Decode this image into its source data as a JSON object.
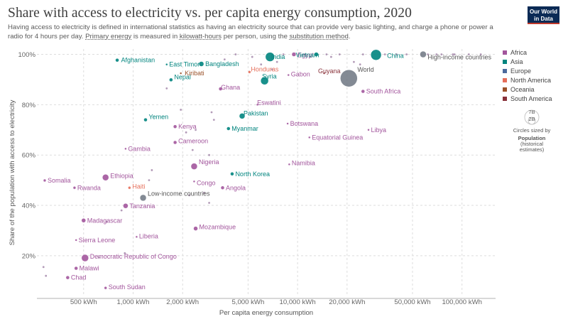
{
  "header": {
    "title": "Share with access to electricity vs. per capita energy consumption, 2020",
    "subtitle_part1": "Having access to electricity is defined in international statistics as having an electricity source that can provide very basic lighting, and charge a phone or power a radio for 4 hours per day. ",
    "subtitle_link1": "Primary energy",
    "subtitle_part2": " is measured in ",
    "subtitle_link2": "kilowatt-hours",
    "subtitle_part3": " per person, using the ",
    "subtitle_link3": "substitution method",
    "subtitle_part4": ".",
    "logo_line1": "Our World",
    "logo_line2": "in Data"
  },
  "colors": {
    "Africa": "#a2559c",
    "Asia": "#00847e",
    "Europe": "#4c6a9c",
    "North America": "#e56e5a",
    "Oceania": "#9a5129",
    "South America": "#883039",
    "Aggregate": "#6d7581"
  },
  "chart_data": {
    "type": "scatter",
    "xlabel": "Per capita energy consumption",
    "ylabel": "Share of the population with access to electricity",
    "xscale": "log",
    "xlim": [
      260,
      160000
    ],
    "ylim": [
      5,
      101
    ],
    "x_ticks": [
      {
        "value": 500,
        "label": "500 kWh"
      },
      {
        "value": 1000,
        "label": "1,000 kWh"
      },
      {
        "value": 2000,
        "label": "2,000 kWh"
      },
      {
        "value": 5000,
        "label": "5,000 kWh"
      },
      {
        "value": 10000,
        "label": "10,000 kWh"
      },
      {
        "value": 20000,
        "label": "20,000 kWh"
      },
      {
        "value": 50000,
        "label": "50,000 kWh"
      },
      {
        "value": 100000,
        "label": "100,000 kWh"
      }
    ],
    "y_ticks": [
      {
        "value": 20,
        "label": "20%"
      },
      {
        "value": 40,
        "label": "40%"
      },
      {
        "value": 60,
        "label": "60%"
      },
      {
        "value": 80,
        "label": "80%"
      },
      {
        "value": 100,
        "label": "100%"
      }
    ],
    "legend": {
      "position": "right",
      "entries": [
        "Africa",
        "Asia",
        "Europe",
        "North America",
        "Oceania",
        "South America"
      ],
      "size_label_big": "7B",
      "size_label_small": "2B",
      "size_caption": "Circles sized by",
      "size_variable_line1": "Population",
      "size_variable_line2": "(historical",
      "size_variable_line3": "estimates)"
    },
    "points": [
      {
        "label": "Afghanistan",
        "x": 800,
        "y": 97.7,
        "r": 2.5,
        "group": "Asia"
      },
      {
        "label": "East Timor",
        "x": 1600,
        "y": 96,
        "r": 1.5,
        "group": "Asia"
      },
      {
        "label": "Bangladesh",
        "x": 2600,
        "y": 96.2,
        "r": 3.5,
        "group": "Asia"
      },
      {
        "label": "India",
        "x": 6800,
        "y": 99,
        "r": 6.5,
        "group": "Asia"
      },
      {
        "label": "Egypt",
        "x": 9500,
        "y": 100,
        "r": 3,
        "group": "Africa"
      },
      {
        "label": "Vietnam",
        "x": 13000,
        "y": 100,
        "r": 3,
        "group": "Asia"
      },
      {
        "label": "China",
        "x": 30000,
        "y": 99.8,
        "r": 7.5,
        "group": "Asia"
      },
      {
        "label": "High-income countries",
        "x": 58000,
        "y": 100,
        "r": 4.5,
        "group": "Aggregate"
      },
      {
        "label": "World",
        "x": 20500,
        "y": 90.5,
        "r": 12,
        "group": "Aggregate"
      },
      {
        "label": "Kiribati",
        "x": 1950,
        "y": 92.5,
        "r": 1.5,
        "group": "Oceania"
      },
      {
        "label": "Nepal",
        "x": 1700,
        "y": 89.9,
        "r": 2.5,
        "group": "Asia"
      },
      {
        "label": "Honduras",
        "x": 5100,
        "y": 93,
        "r": 2,
        "group": "North America"
      },
      {
        "label": "Syria",
        "x": 6300,
        "y": 89.5,
        "r": 5.5,
        "group": "Asia"
      },
      {
        "label": "Gabon",
        "x": 8800,
        "y": 91.8,
        "r": 1.5,
        "group": "Africa"
      },
      {
        "label": "Guyana",
        "x": 14500,
        "y": 92.5,
        "r": 1.5,
        "group": "South America"
      },
      {
        "label": "Ghana",
        "x": 3400,
        "y": 86.3,
        "r": 2.5,
        "group": "Africa"
      },
      {
        "label": "South Africa",
        "x": 25000,
        "y": 85.3,
        "r": 2.5,
        "group": "Africa"
      },
      {
        "label": "Eswatini",
        "x": 5700,
        "y": 80,
        "r": 1.5,
        "group": "Africa"
      },
      {
        "label": "Pakistan",
        "x": 4600,
        "y": 75.5,
        "r": 4,
        "group": "Asia"
      },
      {
        "label": "Yemen",
        "x": 1190,
        "y": 74,
        "r": 2.5,
        "group": "Asia"
      },
      {
        "label": "Kenya",
        "x": 1800,
        "y": 71.3,
        "r": 2.5,
        "group": "Africa"
      },
      {
        "label": "Myanmar",
        "x": 3800,
        "y": 70.5,
        "r": 2.5,
        "group": "Asia"
      },
      {
        "label": "Botswana",
        "x": 8700,
        "y": 72.5,
        "r": 1.5,
        "group": "Africa"
      },
      {
        "label": "Libya",
        "x": 27000,
        "y": 70,
        "r": 1.5,
        "group": "Africa"
      },
      {
        "label": "Equatorial Guinea",
        "x": 11800,
        "y": 67,
        "r": 1.5,
        "group": "Africa"
      },
      {
        "label": "Cameroon",
        "x": 1800,
        "y": 65,
        "r": 2.5,
        "group": "Africa"
      },
      {
        "label": "Gambia",
        "x": 900,
        "y": 62.5,
        "r": 1.5,
        "group": "Africa"
      },
      {
        "label": "Nigeria",
        "x": 2350,
        "y": 55.5,
        "r": 4.5,
        "group": "Africa"
      },
      {
        "label": "Namibia",
        "x": 8900,
        "y": 56.3,
        "r": 1.5,
        "group": "Africa"
      },
      {
        "label": "North Korea",
        "x": 4000,
        "y": 52.5,
        "r": 2.5,
        "group": "Asia"
      },
      {
        "label": "Ethiopia",
        "x": 680,
        "y": 51.1,
        "r": 4.5,
        "group": "Africa"
      },
      {
        "label": "Congo",
        "x": 2350,
        "y": 49.5,
        "r": 1.5,
        "group": "Africa"
      },
      {
        "label": "Somalia",
        "x": 290,
        "y": 49.9,
        "r": 2,
        "group": "Africa"
      },
      {
        "label": "Rwanda",
        "x": 440,
        "y": 47,
        "r": 2,
        "group": "Africa"
      },
      {
        "label": "Haiti",
        "x": 950,
        "y": 47,
        "r": 2,
        "group": "North America"
      },
      {
        "label": "Angola",
        "x": 3500,
        "y": 47,
        "r": 2.5,
        "group": "Africa"
      },
      {
        "label": "Low-income countries",
        "x": 1150,
        "y": 43,
        "r": 4.5,
        "group": "Aggregate"
      },
      {
        "label": "Tanzania",
        "x": 900,
        "y": 39.8,
        "r": 3.5,
        "group": "Africa"
      },
      {
        "label": "Madagascar",
        "x": 500,
        "y": 34,
        "r": 3,
        "group": "Africa"
      },
      {
        "label": "Mozambique",
        "x": 2400,
        "y": 30.8,
        "r": 3,
        "group": "Africa"
      },
      {
        "label": "Sierra Leone",
        "x": 450,
        "y": 26.2,
        "r": 1.5,
        "group": "Africa"
      },
      {
        "label": "Liberia",
        "x": 1050,
        "y": 27.5,
        "r": 1.5,
        "group": "Africa"
      },
      {
        "label": "Democratic Republic of Congo",
        "x": 510,
        "y": 19.1,
        "r": 5,
        "group": "Africa"
      },
      {
        "label": "Malawi",
        "x": 450,
        "y": 15,
        "r": 2.5,
        "group": "Africa"
      },
      {
        "label": "Chad",
        "x": 400,
        "y": 11.3,
        "r": 2.5,
        "group": "Africa"
      },
      {
        "label": "South Sudan",
        "x": 680,
        "y": 7.2,
        "r": 2,
        "group": "Africa"
      }
    ]
  }
}
